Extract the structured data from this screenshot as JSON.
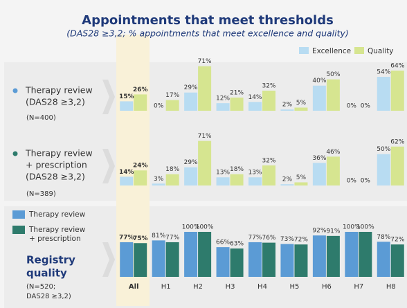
{
  "title": "Appointments that meet thresholds",
  "subtitle": "(DAS28 ≥3,2; % appointments that meet excellence and quality)",
  "chart_data": [
    {
      "type": "bar",
      "label": [
        "Therapy review",
        "(DAS28 ≥3,2)"
      ],
      "note": "(N=400)",
      "ylim": [
        0,
        75
      ],
      "series": [
        {
          "name": "Excellence",
          "color": "#b8dcf2",
          "values": [
            15,
            0,
            29,
            12,
            14,
            2,
            40,
            0,
            54
          ],
          "value_labels": [
            "15%",
            "0%",
            "29%",
            "12%",
            "14%",
            "2%",
            "40%",
            "0%",
            "54%"
          ]
        },
        {
          "name": "Quality",
          "color": "#d6e590",
          "values": [
            26,
            17,
            71,
            21,
            32,
            5,
            50,
            0,
            64
          ],
          "value_labels": [
            "26%",
            "17%",
            "71%",
            "21%",
            "32%",
            "5%",
            "50%",
            "0%",
            "64%"
          ]
        }
      ]
    },
    {
      "type": "bar",
      "label": [
        "Therapy review",
        "+ prescription",
        "(DAS28 ≥3,2)"
      ],
      "note": "(N=389)",
      "ylim": [
        0,
        75
      ],
      "series": [
        {
          "color": "#b8dcf2",
          "values": [
            14,
            3,
            29,
            13,
            13,
            2,
            36,
            0,
            50
          ],
          "value_labels": [
            "14%",
            "3%",
            "29%",
            "13%",
            "13%",
            "2%",
            "36%",
            "0%",
            "50%"
          ]
        },
        {
          "color": "#d6e590",
          "values": [
            24,
            18,
            71,
            18,
            32,
            5,
            46,
            0,
            62
          ],
          "value_labels": [
            "24%",
            "18%",
            "71%",
            "18%",
            "32%",
            "5%",
            "46%",
            "0%",
            "62%"
          ]
        }
      ]
    },
    {
      "type": "bar",
      "label": [
        "Registry",
        "quality"
      ],
      "note": [
        "(N=520;",
        "DAS28 ≥3,2)"
      ],
      "ylim": [
        0,
        100
      ],
      "categories": [
        "All",
        "H1",
        "H2",
        "H3",
        "H4",
        "H5",
        "H6",
        "H7",
        "H8"
      ],
      "series": [
        {
          "name": "Therapy review",
          "color": "#5b9bd5",
          "values": [
            77,
            81,
            100,
            66,
            77,
            73,
            92,
            100,
            78
          ],
          "value_labels": [
            "77%",
            "81%",
            "100%",
            "66%",
            "77%",
            "73%",
            "92%",
            "100%",
            "78%"
          ]
        },
        {
          "name": "Therapy review\n+ prescription",
          "color": "#2e7b6c",
          "values": [
            75,
            77,
            100,
            63,
            76,
            72,
            91,
            100,
            72
          ],
          "value_labels": [
            "75%",
            "77%",
            "100%",
            "63%",
            "76%",
            "72%",
            "91%",
            "100%",
            "72%"
          ]
        }
      ]
    }
  ]
}
